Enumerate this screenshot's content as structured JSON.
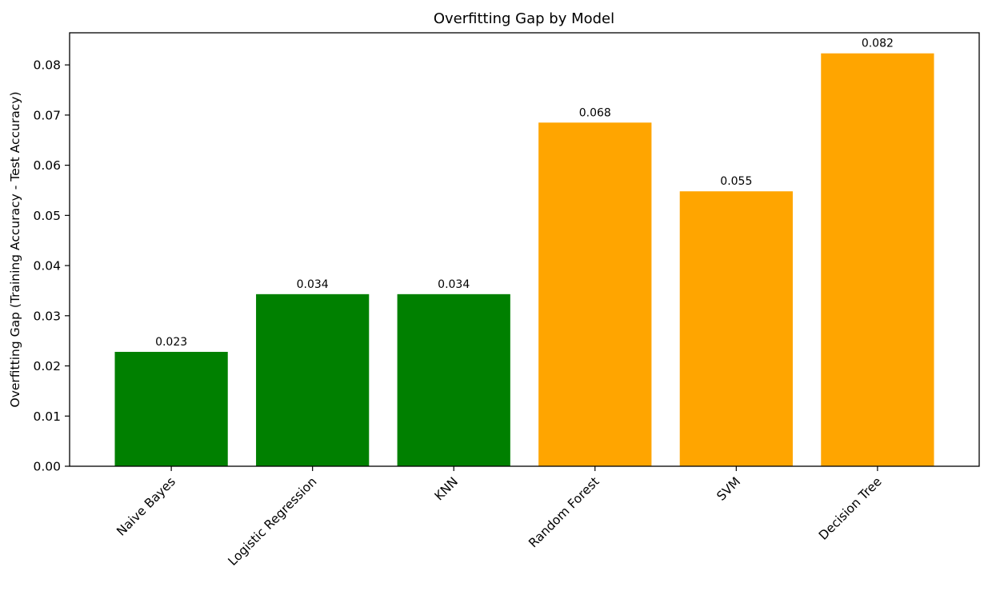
{
  "chart_data": {
    "type": "bar",
    "title": "Overfitting Gap by Model",
    "xlabel": "",
    "ylabel": "Overfitting Gap (Training Accuracy - Test Accuracy)",
    "categories": [
      "Naive Bayes",
      "Logistic Regression",
      "KNN",
      "Random Forest",
      "SVM",
      "Decision Tree"
    ],
    "values": [
      0.0228,
      0.0343,
      0.0343,
      0.0685,
      0.0548,
      0.0823
    ],
    "value_labels": [
      "0.023",
      "0.034",
      "0.034",
      "0.068",
      "0.055",
      "0.082"
    ],
    "bar_colors": [
      "#008000",
      "#008000",
      "#008000",
      "#ffa500",
      "#ffa500",
      "#ffa500"
    ],
    "ylim": [
      0,
      0.0864
    ],
    "yticks": [
      0.0,
      0.01,
      0.02,
      0.03,
      0.04,
      0.05,
      0.06,
      0.07,
      0.08
    ],
    "ytick_labels": [
      "0.00",
      "0.01",
      "0.02",
      "0.03",
      "0.04",
      "0.05",
      "0.06",
      "0.07",
      "0.08"
    ],
    "xtick_rotation_deg": 45,
    "grid": false,
    "legend": "none"
  }
}
